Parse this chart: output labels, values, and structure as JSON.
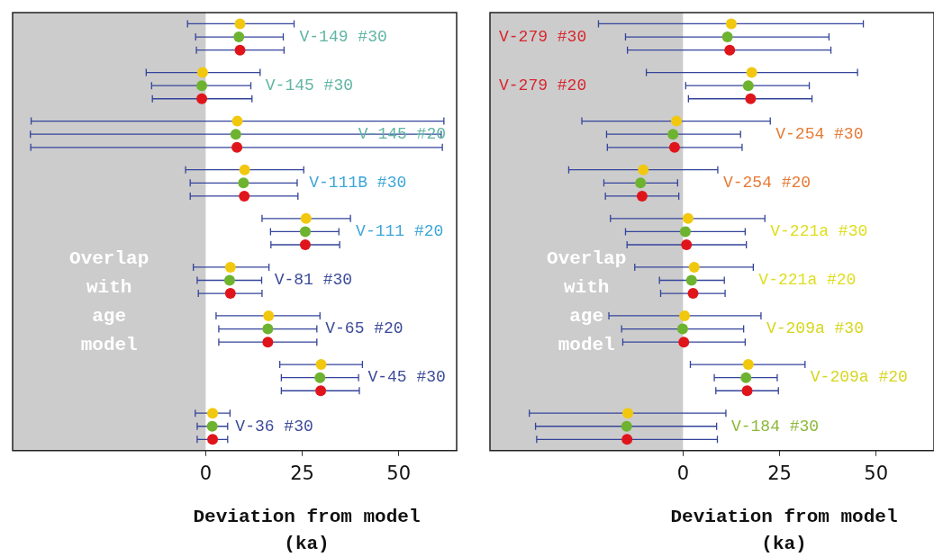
{
  "chart_data": [
    {
      "type": "scatter",
      "orientation": "horizontal",
      "xlabel": "Deviation from model (ka)",
      "xlim": [
        -50,
        65
      ],
      "xticks": [
        0,
        25,
        50
      ],
      "grid": false,
      "legend": false,
      "marker": "circle",
      "categories": [
        "V-149 #30",
        "V-145 #30",
        "V-145 #20",
        "V-111B #30",
        "V-111 #20",
        "V-81 #30",
        "V-65 #20",
        "V-45 #30",
        "V-36 #30"
      ],
      "bands": [
        {
          "axis": "x",
          "from": -50,
          "to": 0,
          "label": "Overlap with age model",
          "color": "#cccccc"
        }
      ],
      "series": [
        {
          "color": "#f2c80f",
          "values": [
            8.9,
            -0.8,
            8.2,
            10.1,
            26.0,
            6.4,
            16.3,
            29.9,
            1.8
          ],
          "errors": [
            [
              -4.7,
              22.9
            ],
            [
              -15.4,
              14.1
            ],
            [
              -45.2,
              61.7
            ],
            [
              -5.2,
              25.4
            ],
            [
              14.6,
              37.5
            ],
            [
              -3.2,
              16.4
            ],
            [
              2.7,
              29.6
            ],
            [
              19.2,
              40.6
            ],
            [
              -2.7,
              6.3
            ]
          ]
        },
        {
          "color": "#6db32f",
          "values": [
            8.6,
            -1.0,
            7.8,
            9.8,
            25.8,
            6.2,
            16.1,
            29.6,
            1.7
          ],
          "errors": [
            [
              -2.6,
              20.1
            ],
            [
              -14.0,
              11.7
            ],
            [
              -45.4,
              61.0
            ],
            [
              -4.0,
              23.7
            ],
            [
              16.8,
              34.5
            ],
            [
              -2.2,
              14.5
            ],
            [
              3.4,
              28.8
            ],
            [
              19.6,
              39.6
            ],
            [
              -2.2,
              5.7
            ]
          ]
        },
        {
          "color": "#e0151c",
          "values": [
            8.9,
            -1.0,
            8.1,
            10.0,
            25.8,
            6.4,
            16.1,
            29.8,
            1.8
          ],
          "errors": [
            [
              -2.4,
              20.3
            ],
            [
              -13.8,
              12.0
            ],
            [
              -45.3,
              61.3
            ],
            [
              -4.0,
              23.9
            ],
            [
              16.9,
              34.7
            ],
            [
              -1.9,
              14.6
            ],
            [
              3.4,
              28.8
            ],
            [
              19.6,
              39.8
            ],
            [
              -2.2,
              5.7
            ]
          ]
        }
      ]
    },
    {
      "type": "scatter",
      "orientation": "horizontal",
      "xlabel": "Deviation from model (ka)",
      "xlim": [
        -50,
        65
      ],
      "xticks": [
        0,
        25,
        50
      ],
      "grid": false,
      "legend": false,
      "marker": "circle",
      "categories": [
        "V-279 #30",
        "V-279 #20",
        "V-254 #30",
        "V-254 #20",
        "V-221a #30",
        "V-221a #20",
        "V-209a #30",
        "V-209a #20",
        "V-184 #30"
      ],
      "bands": [
        {
          "axis": "x",
          "from": -50,
          "to": 0,
          "label": "Overlap with age model",
          "color": "#cccccc"
        }
      ],
      "series": [
        {
          "color": "#f2c80f",
          "values": [
            12.5,
            17.8,
            -1.7,
            -10.3,
            1.3,
            2.9,
            0.4,
            16.9,
            -14.3
          ],
          "errors": [
            [
              -21.9,
              46.7
            ],
            [
              -9.5,
              45.2
            ],
            [
              -26.2,
              22.6
            ],
            [
              -29.6,
              9.0
            ],
            [
              -18.8,
              21.2
            ],
            [
              -12.5,
              18.2
            ],
            [
              -19.2,
              20.2
            ],
            [
              1.9,
              31.6
            ],
            [
              -39.8,
              11.1
            ]
          ]
        },
        {
          "color": "#6db32f",
          "values": [
            11.5,
            16.9,
            -2.6,
            -11.0,
            0.6,
            2.2,
            -0.1,
            16.3,
            -14.6
          ],
          "errors": [
            [
              -14.9,
              37.8
            ],
            [
              0.7,
              32.7
            ],
            [
              -19.8,
              14.9
            ],
            [
              -20.5,
              -1.4
            ],
            [
              -14.9,
              16.1
            ],
            [
              -6.1,
              10.7
            ],
            [
              -15.9,
              15.7
            ],
            [
              8.1,
              24.4
            ],
            [
              -38.2,
              8.7
            ]
          ]
        },
        {
          "color": "#e0151c",
          "values": [
            12.1,
            17.5,
            -2.2,
            -10.6,
            0.9,
            2.6,
            0.2,
            16.6,
            -14.5
          ],
          "errors": [
            [
              -14.4,
              38.3
            ],
            [
              1.4,
              33.4
            ],
            [
              -19.6,
              15.3
            ],
            [
              -20.1,
              -1.1
            ],
            [
              -14.5,
              16.4
            ],
            [
              -5.8,
              10.9
            ],
            [
              -15.6,
              16.1
            ],
            [
              8.5,
              24.7
            ],
            [
              -37.9,
              8.9
            ]
          ]
        }
      ]
    }
  ]
}
